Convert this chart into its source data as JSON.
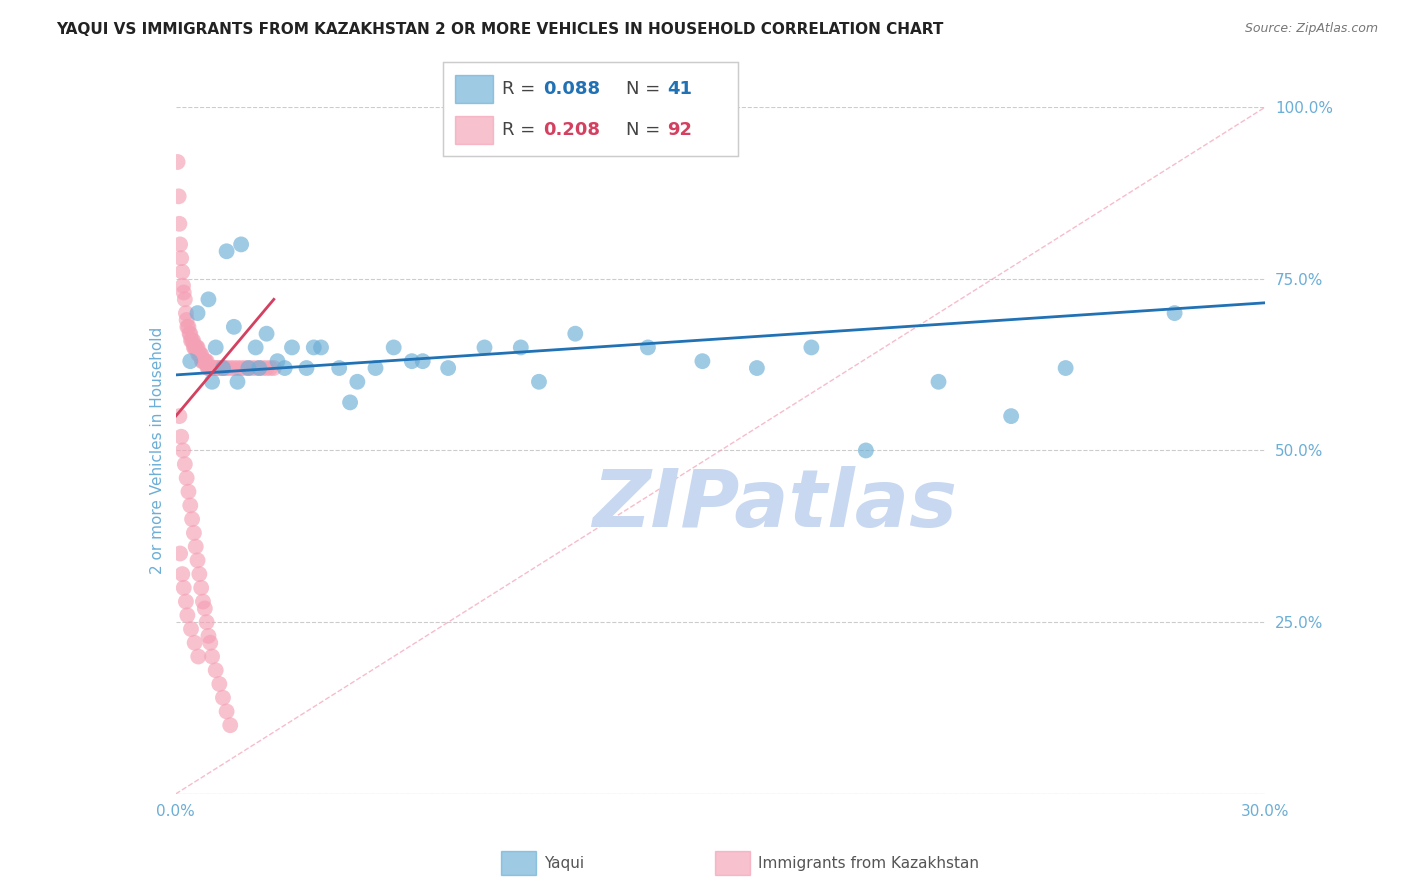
{
  "title": "YAQUI VS IMMIGRANTS FROM KAZAKHSTAN 2 OR MORE VEHICLES IN HOUSEHOLD CORRELATION CHART",
  "source": "Source: ZipAtlas.com",
  "ylabel": "2 or more Vehicles in Household",
  "xlim": [
    0.0,
    30.0
  ],
  "ylim": [
    0.0,
    100.0
  ],
  "yticks": [
    0.0,
    25.0,
    50.0,
    75.0,
    100.0
  ],
  "background_color": "#ffffff",
  "grid_color": "#cccccc",
  "watermark_text": "ZIPatlas",
  "watermark_color": "#c8d8f0",
  "legend_R1": "0.088",
  "legend_N1": "41",
  "legend_R2": "0.208",
  "legend_N2": "92",
  "blue_color": "#6baed6",
  "pink_color": "#f4a0b5",
  "blue_line_color": "#2171b5",
  "pink_line_color": "#d44060",
  "pink_dash_color": "#f4a0b5",
  "title_fontsize": 11,
  "source_fontsize": 9,
  "legend_fontsize": 13,
  "ylabel_fontsize": 11,
  "ytick_color": "#6baed6",
  "xtick_color": "#6baed6",
  "blue_x": [
    0.4,
    0.6,
    0.9,
    1.1,
    1.4,
    1.6,
    1.8,
    2.0,
    2.2,
    2.5,
    2.8,
    3.2,
    3.6,
    4.0,
    4.5,
    5.0,
    5.5,
    6.0,
    6.8,
    7.5,
    8.5,
    9.5,
    11.0,
    13.0,
    14.5,
    16.0,
    17.5,
    19.0,
    21.0,
    23.0,
    24.5,
    27.5,
    1.0,
    1.3,
    1.7,
    2.3,
    3.0,
    3.8,
    4.8,
    6.5,
    10.0
  ],
  "blue_y": [
    63,
    70,
    72,
    65,
    79,
    68,
    80,
    62,
    65,
    67,
    63,
    65,
    62,
    65,
    62,
    60,
    62,
    65,
    63,
    62,
    65,
    65,
    67,
    65,
    63,
    62,
    65,
    50,
    60,
    55,
    62,
    70,
    60,
    62,
    60,
    62,
    62,
    65,
    57,
    63,
    60
  ],
  "pink_x": [
    0.05,
    0.08,
    0.1,
    0.12,
    0.15,
    0.18,
    0.2,
    0.22,
    0.25,
    0.28,
    0.3,
    0.32,
    0.35,
    0.38,
    0.4,
    0.42,
    0.45,
    0.48,
    0.5,
    0.52,
    0.55,
    0.58,
    0.6,
    0.62,
    0.65,
    0.68,
    0.7,
    0.72,
    0.75,
    0.78,
    0.8,
    0.82,
    0.85,
    0.88,
    0.9,
    0.92,
    0.95,
    0.98,
    1.0,
    1.05,
    1.1,
    1.15,
    1.2,
    1.25,
    1.3,
    1.35,
    1.4,
    1.5,
    1.6,
    1.7,
    1.8,
    1.9,
    2.0,
    2.1,
    2.2,
    2.3,
    2.4,
    2.5,
    2.6,
    2.7,
    0.1,
    0.15,
    0.2,
    0.25,
    0.3,
    0.35,
    0.4,
    0.45,
    0.5,
    0.55,
    0.6,
    0.65,
    0.7,
    0.75,
    0.8,
    0.85,
    0.9,
    0.95,
    1.0,
    1.1,
    1.2,
    1.3,
    1.4,
    1.5,
    0.12,
    0.18,
    0.22,
    0.28,
    0.32,
    0.42,
    0.52,
    0.62
  ],
  "pink_y": [
    92,
    87,
    83,
    80,
    78,
    76,
    74,
    73,
    72,
    70,
    69,
    68,
    68,
    67,
    67,
    66,
    66,
    66,
    65,
    65,
    65,
    65,
    65,
    64,
    64,
    64,
    64,
    63,
    63,
    63,
    63,
    63,
    63,
    62,
    62,
    62,
    62,
    62,
    62,
    62,
    62,
    62,
    62,
    62,
    62,
    62,
    62,
    62,
    62,
    62,
    62,
    62,
    62,
    62,
    62,
    62,
    62,
    62,
    62,
    62,
    55,
    52,
    50,
    48,
    46,
    44,
    42,
    40,
    38,
    36,
    34,
    32,
    30,
    28,
    27,
    25,
    23,
    22,
    20,
    18,
    16,
    14,
    12,
    10,
    35,
    32,
    30,
    28,
    26,
    24,
    22,
    20
  ]
}
